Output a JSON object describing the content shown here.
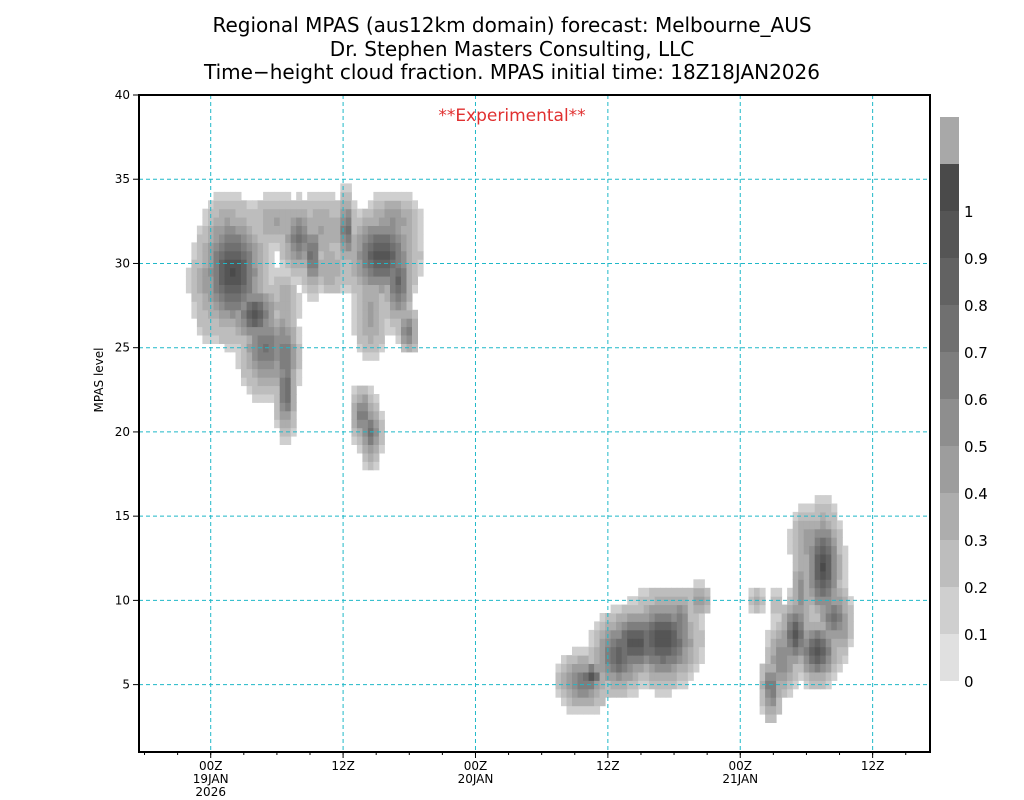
{
  "chart_data": {
    "type": "heatmap",
    "title": [
      "Regional MPAS (aus12km domain) forecast: Melbourne_AUS",
      "Dr. Stephen Masters Consulting, LLC",
      "Time−height cloud fraction.    MPAS initial time: 18Z18JAN2026"
    ],
    "annotation": "**Experimental**",
    "ylabel": "MPAS level",
    "xlabel": "",
    "x_range_hours_from_init": [
      0,
      66
    ],
    "ylim": [
      1,
      40
    ],
    "y_ticks": [
      5,
      10,
      15,
      20,
      25,
      30,
      35,
      40
    ],
    "x_ticks": [
      {
        "hour": 6,
        "label": [
          "00Z",
          "19JAN",
          "2026"
        ]
      },
      {
        "hour": 18,
        "label": [
          "12Z"
        ]
      },
      {
        "hour": 30,
        "label": [
          "00Z",
          "20JAN"
        ]
      },
      {
        "hour": 42,
        "label": [
          "12Z"
        ]
      },
      {
        "hour": 54,
        "label": [
          "00Z",
          "21JAN"
        ]
      },
      {
        "hour": 66,
        "label": [
          "12Z"
        ]
      }
    ],
    "grid": true,
    "colorbar": {
      "levels": [
        0,
        0.1,
        0.2,
        0.3,
        0.4,
        0.5,
        0.6,
        0.7,
        0.8,
        0.9,
        1
      ],
      "colors": [
        "#e0e0e0",
        "#cfcfcf",
        "#bdbdbd",
        "#adadad",
        "#9d9d9d",
        "#8e8e8e",
        "#7e7e7e",
        "#707070",
        "#626262",
        "#555555",
        "#4a4a4a",
        "#a8a8a8"
      ]
    },
    "cloud_blobs": [
      {
        "hour": 8.0,
        "level": 29.5,
        "frac": 0.9,
        "sh": 1.6,
        "sl": 2.0
      },
      {
        "hour": 7.5,
        "level": 31.0,
        "frac": 0.5,
        "sh": 1.3,
        "sl": 1.6
      },
      {
        "hour": 6.3,
        "level": 29.0,
        "frac": 0.4,
        "sh": 1.2,
        "sl": 2.0
      },
      {
        "hour": 10.0,
        "level": 27.0,
        "frac": 0.8,
        "sh": 1.2,
        "sl": 1.0
      },
      {
        "hour": 11.0,
        "level": 25.0,
        "frac": 0.6,
        "sh": 1.3,
        "sl": 1.5
      },
      {
        "hour": 12.7,
        "level": 24.5,
        "frac": 0.6,
        "sh": 0.7,
        "sl": 1.8
      },
      {
        "hour": 12.8,
        "level": 22.5,
        "frac": 0.7,
        "sh": 0.5,
        "sl": 1.5
      },
      {
        "hour": 12.7,
        "level": 27.5,
        "frac": 0.3,
        "sh": 0.8,
        "sl": 1.3
      },
      {
        "hour": 14.0,
        "level": 31.5,
        "frac": 0.6,
        "sh": 0.9,
        "sl": 1.2
      },
      {
        "hour": 16.0,
        "level": 32.0,
        "frac": 0.3,
        "sh": 2.0,
        "sl": 1.2
      },
      {
        "hour": 12.0,
        "level": 32.5,
        "frac": 0.3,
        "sh": 1.5,
        "sl": 1.0
      },
      {
        "hour": 15.2,
        "level": 30.5,
        "frac": 0.7,
        "sh": 0.5,
        "sl": 1.2
      },
      {
        "hour": 18.3,
        "level": 32.0,
        "frac": 0.7,
        "sh": 0.4,
        "sl": 1.2
      },
      {
        "hour": 16.8,
        "level": 29.8,
        "frac": 0.3,
        "sh": 1.0,
        "sl": 1.0
      },
      {
        "hour": 21.5,
        "level": 30.5,
        "frac": 0.85,
        "sh": 1.7,
        "sl": 1.4
      },
      {
        "hour": 23.0,
        "level": 29.0,
        "frac": 0.7,
        "sh": 0.7,
        "sl": 1.5
      },
      {
        "hour": 22.5,
        "level": 32.5,
        "frac": 0.4,
        "sh": 1.5,
        "sl": 0.9
      },
      {
        "hour": 20.5,
        "level": 27.0,
        "frac": 0.35,
        "sh": 0.9,
        "sl": 1.5
      },
      {
        "hour": 23.9,
        "level": 26.0,
        "frac": 0.6,
        "sh": 0.5,
        "sl": 0.7
      },
      {
        "hour": 19.8,
        "level": 21.0,
        "frac": 0.6,
        "sh": 0.6,
        "sl": 0.9
      },
      {
        "hour": 20.5,
        "level": 20.0,
        "frac": 0.6,
        "sh": 0.6,
        "sl": 1.1
      },
      {
        "hour": 39.8,
        "level": 5.2,
        "frac": 0.6,
        "sh": 1.3,
        "sl": 0.9
      },
      {
        "hour": 40.5,
        "level": 5.5,
        "frac": 0.85,
        "sh": 0.6,
        "sl": 0.5
      },
      {
        "hour": 43.0,
        "level": 6.8,
        "frac": 0.75,
        "sh": 1.3,
        "sl": 1.2
      },
      {
        "hour": 44.5,
        "level": 7.5,
        "frac": 0.85,
        "sh": 1.5,
        "sl": 1.1
      },
      {
        "hour": 47.0,
        "level": 7.7,
        "frac": 0.9,
        "sh": 1.7,
        "sl": 1.4
      },
      {
        "hour": 48.5,
        "level": 8.8,
        "frac": 0.55,
        "sh": 0.7,
        "sl": 1.0
      },
      {
        "hour": 50.3,
        "level": 10.0,
        "frac": 0.4,
        "sh": 0.6,
        "sl": 0.6
      },
      {
        "hour": 55.5,
        "level": 10.0,
        "frac": 0.2,
        "sh": 0.5,
        "sl": 0.6
      },
      {
        "hour": 57.3,
        "level": 9.8,
        "frac": 0.2,
        "sh": 0.45,
        "sl": 0.6
      },
      {
        "hour": 56.8,
        "level": 4.8,
        "frac": 0.6,
        "sh": 0.55,
        "sl": 1.0
      },
      {
        "hour": 57.8,
        "level": 6.5,
        "frac": 0.5,
        "sh": 0.8,
        "sl": 1.2
      },
      {
        "hour": 59.0,
        "level": 8.0,
        "frac": 0.85,
        "sh": 0.7,
        "sl": 1.1
      },
      {
        "hour": 59.5,
        "level": 10.5,
        "frac": 0.45,
        "sh": 0.5,
        "sl": 1.6
      },
      {
        "hour": 61.5,
        "level": 12.0,
        "frac": 0.9,
        "sh": 0.9,
        "sl": 1.8
      },
      {
        "hour": 61.0,
        "level": 7.0,
        "frac": 0.85,
        "sh": 1.0,
        "sl": 1.0
      },
      {
        "hour": 62.5,
        "level": 9.0,
        "frac": 0.6,
        "sh": 0.9,
        "sl": 1.1
      },
      {
        "hour": 63.2,
        "level": 8.3,
        "frac": 0.4,
        "sh": 0.5,
        "sl": 1.1
      },
      {
        "hour": 60.3,
        "level": 13.5,
        "frac": 0.4,
        "sh": 1.0,
        "sl": 1.2
      }
    ]
  }
}
